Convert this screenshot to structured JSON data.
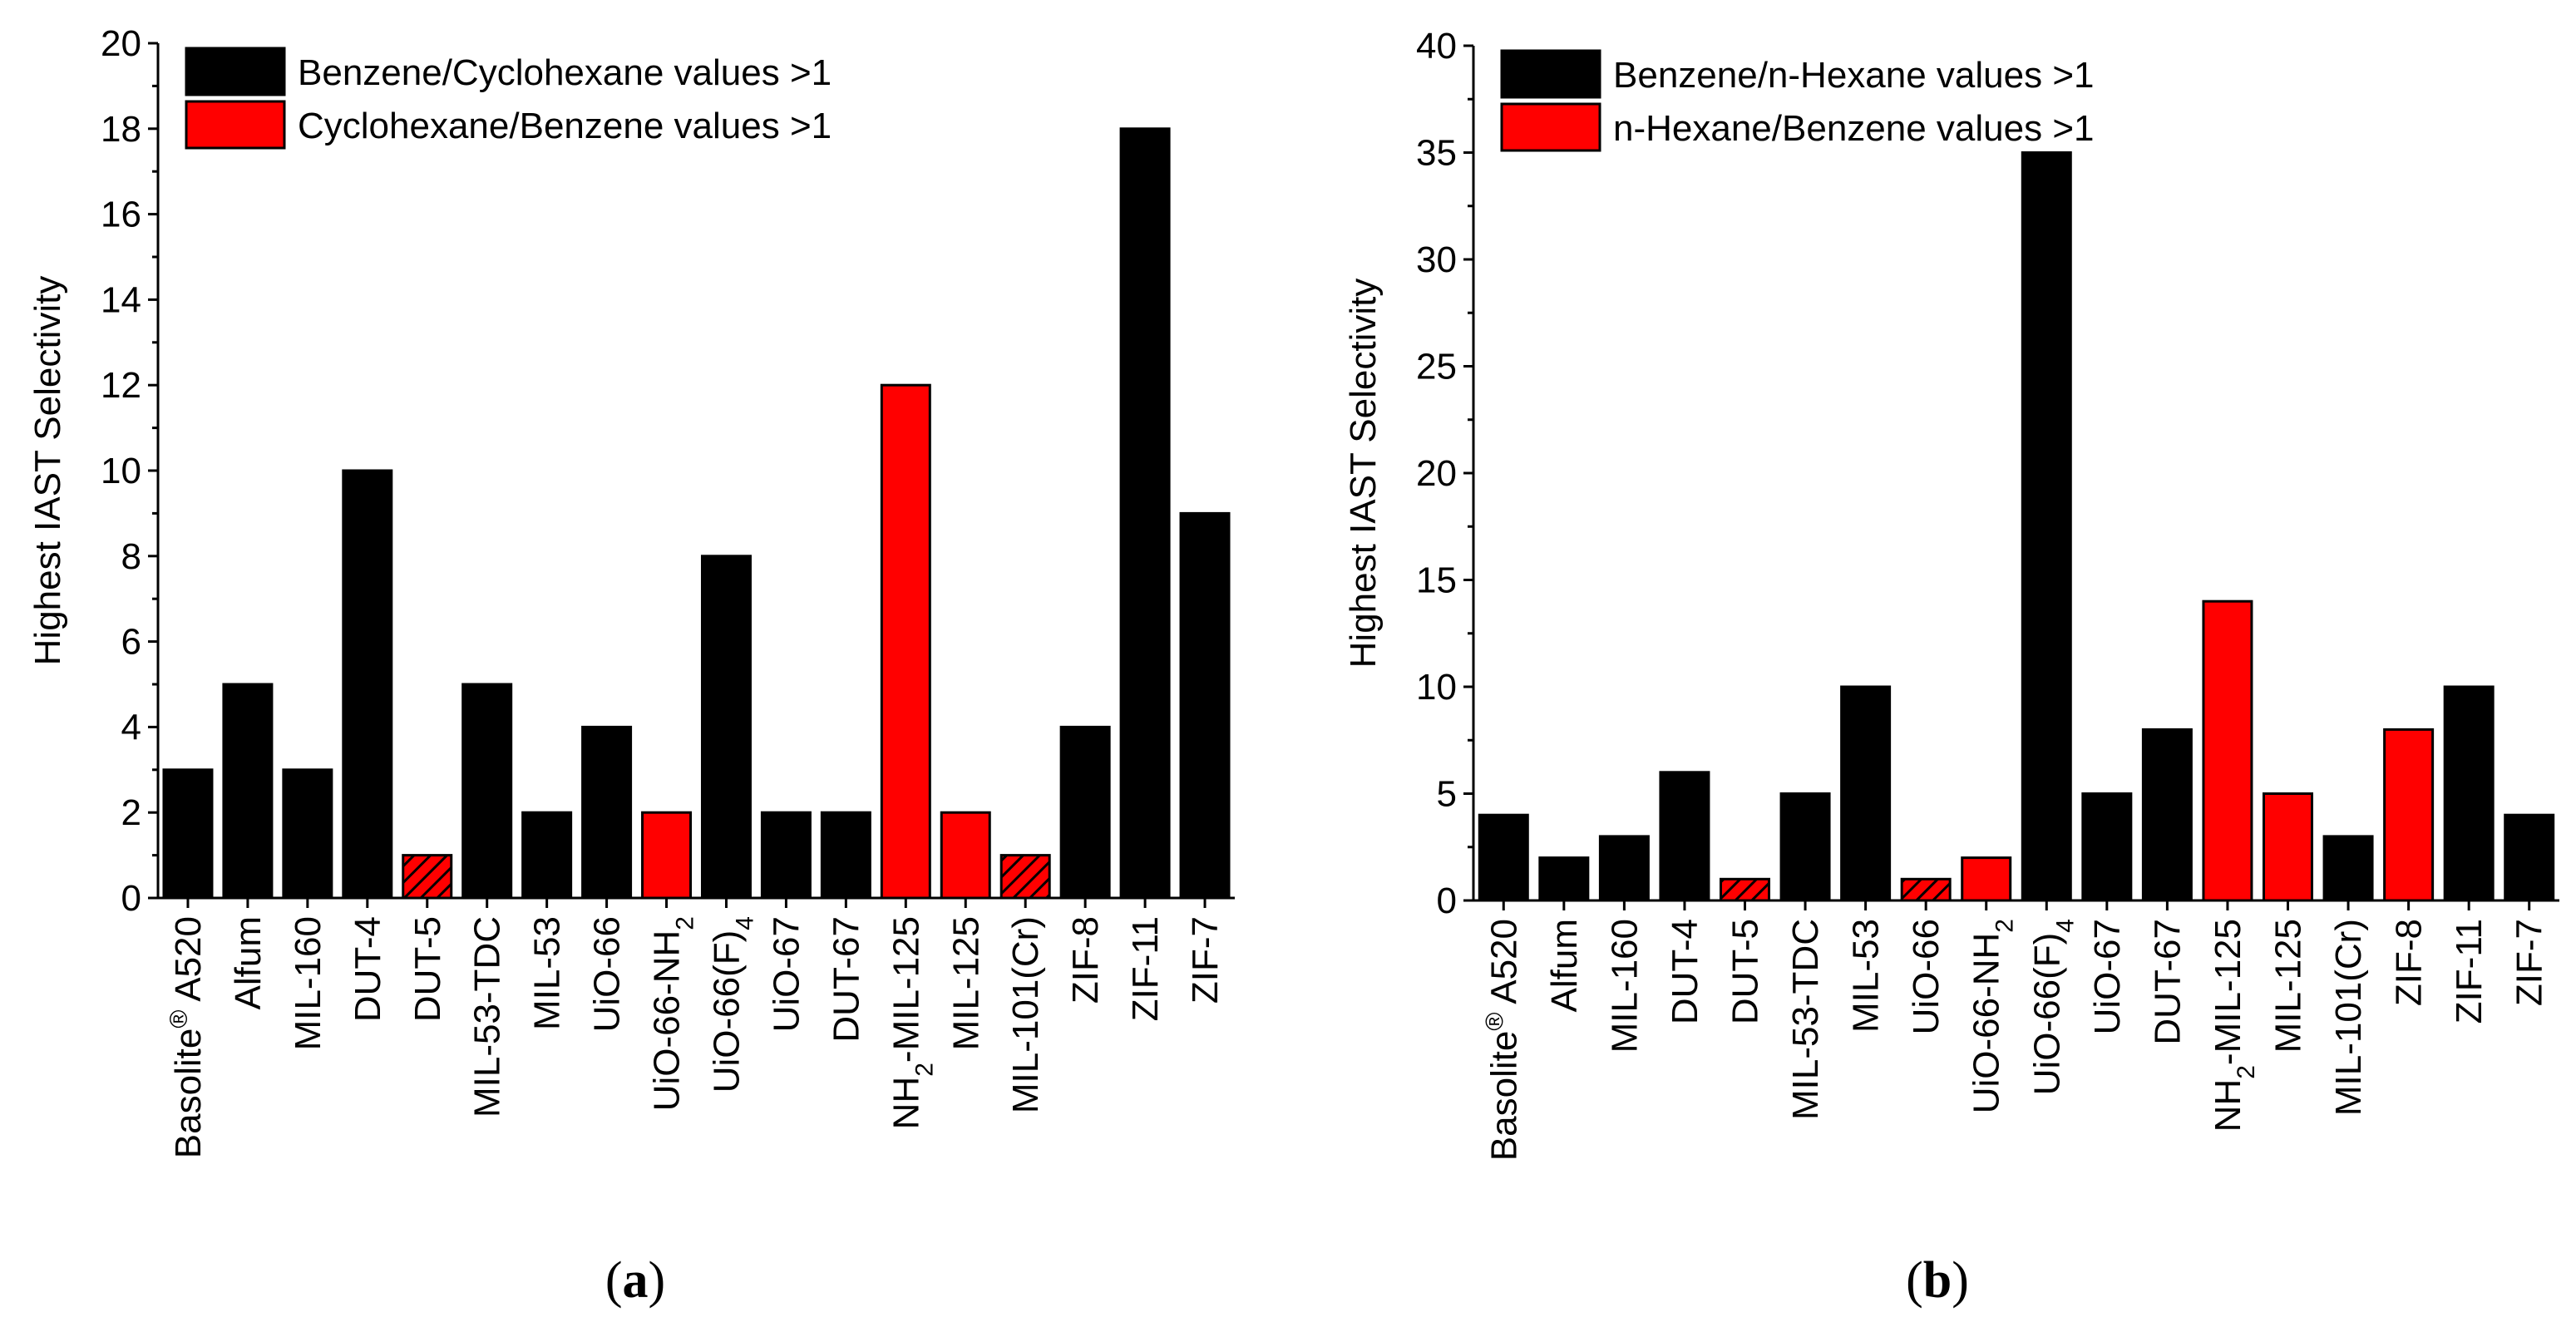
{
  "colors": {
    "black_series": "#000000",
    "red_series": "#ff0000",
    "hatched_fill": "#ff0000"
  },
  "chart_data": [
    {
      "type": "bar",
      "panel_label": "(a)",
      "ylabel": "Highest IAST Selectivity",
      "xlabel": "",
      "ylim": [
        0,
        20
      ],
      "yticks": [
        0,
        2,
        4,
        6,
        8,
        10,
        12,
        14,
        16,
        18,
        20
      ],
      "legend_position": "top-left",
      "legend": [
        {
          "label": "Benzene/Cyclohexane values >1",
          "style": "black"
        },
        {
          "label": "Cyclohexane/Benzene values >1",
          "style": "red"
        }
      ],
      "categories": [
        {
          "parts": [
            [
              "Basolite",
              "n"
            ],
            [
              "®",
              "sup"
            ],
            [
              " A520",
              "n"
            ]
          ]
        },
        {
          "parts": [
            [
              "Alfum",
              "n"
            ]
          ]
        },
        {
          "parts": [
            [
              "MIL-160",
              "n"
            ]
          ]
        },
        {
          "parts": [
            [
              "DUT-4",
              "n"
            ]
          ]
        },
        {
          "parts": [
            [
              "DUT-5",
              "n"
            ]
          ]
        },
        {
          "parts": [
            [
              "MIL-53-TDC",
              "n"
            ]
          ]
        },
        {
          "parts": [
            [
              "MIL-53",
              "n"
            ]
          ]
        },
        {
          "parts": [
            [
              "UiO-66",
              "n"
            ]
          ]
        },
        {
          "parts": [
            [
              "UiO-66-NH",
              "n"
            ],
            [
              "2",
              "sub"
            ]
          ]
        },
        {
          "parts": [
            [
              "UiO-66(F)",
              "n"
            ],
            [
              "4",
              "sub"
            ]
          ]
        },
        {
          "parts": [
            [
              "UiO-67",
              "n"
            ]
          ]
        },
        {
          "parts": [
            [
              "DUT-67",
              "n"
            ]
          ]
        },
        {
          "parts": [
            [
              "NH",
              "n"
            ],
            [
              "2",
              "sub"
            ],
            [
              "-MIL-125",
              "n"
            ]
          ]
        },
        {
          "parts": [
            [
              "MIL-125",
              "n"
            ]
          ]
        },
        {
          "parts": [
            [
              "MIL-101(Cr)",
              "n"
            ]
          ]
        },
        {
          "parts": [
            [
              "ZIF-8",
              "n"
            ]
          ]
        },
        {
          "parts": [
            [
              "ZIF-11",
              "n"
            ]
          ]
        },
        {
          "parts": [
            [
              "ZIF-7",
              "n"
            ]
          ]
        }
      ],
      "values": [
        3,
        5,
        3,
        10,
        1,
        5,
        2,
        4,
        2,
        8,
        2,
        2,
        12,
        2,
        1,
        4,
        18,
        9
      ],
      "styles": [
        "black",
        "black",
        "black",
        "black",
        "hatched",
        "black",
        "black",
        "black",
        "red",
        "black",
        "black",
        "black",
        "red",
        "red",
        "hatched",
        "black",
        "black",
        "black"
      ]
    },
    {
      "type": "bar",
      "panel_label": "(b)",
      "ylabel": "Highest IAST Selectivity",
      "xlabel": "",
      "ylim": [
        0,
        40
      ],
      "yticks": [
        0,
        5,
        10,
        15,
        20,
        25,
        30,
        35,
        40
      ],
      "legend_position": "top-left",
      "legend": [
        {
          "label": "Benzene/n-Hexane values >1",
          "style": "black"
        },
        {
          "label": "n-Hexane/Benzene values >1",
          "style": "red"
        }
      ],
      "categories": [
        {
          "parts": [
            [
              "Basolite",
              "n"
            ],
            [
              "®",
              "sup"
            ],
            [
              " A520",
              "n"
            ]
          ]
        },
        {
          "parts": [
            [
              "Alfum",
              "n"
            ]
          ]
        },
        {
          "parts": [
            [
              "MIL-160",
              "n"
            ]
          ]
        },
        {
          "parts": [
            [
              "DUT-4",
              "n"
            ]
          ]
        },
        {
          "parts": [
            [
              "DUT-5",
              "n"
            ]
          ]
        },
        {
          "parts": [
            [
              "MIL-53-TDC",
              "n"
            ]
          ]
        },
        {
          "parts": [
            [
              "MIL-53",
              "n"
            ]
          ]
        },
        {
          "parts": [
            [
              "UiO-66",
              "n"
            ]
          ]
        },
        {
          "parts": [
            [
              "UiO-66-NH",
              "n"
            ],
            [
              "2",
              "sub"
            ]
          ]
        },
        {
          "parts": [
            [
              "UiO-66(F)",
              "n"
            ],
            [
              "4",
              "sub"
            ]
          ]
        },
        {
          "parts": [
            [
              "UiO-67",
              "n"
            ]
          ]
        },
        {
          "parts": [
            [
              "DUT-67",
              "n"
            ]
          ]
        },
        {
          "parts": [
            [
              "NH",
              "n"
            ],
            [
              "2",
              "sub"
            ],
            [
              "-MIL-125",
              "n"
            ]
          ]
        },
        {
          "parts": [
            [
              "MIL-125",
              "n"
            ]
          ]
        },
        {
          "parts": [
            [
              "MIL-101(Cr)",
              "n"
            ]
          ]
        },
        {
          "parts": [
            [
              "ZIF-8",
              "n"
            ]
          ]
        },
        {
          "parts": [
            [
              "ZIF-11",
              "n"
            ]
          ]
        },
        {
          "parts": [
            [
              "ZIF-7",
              "n"
            ]
          ]
        }
      ],
      "values": [
        4,
        2,
        3,
        6,
        1,
        5,
        10,
        1,
        2,
        35,
        5,
        8,
        14,
        5,
        3,
        8,
        10,
        4
      ],
      "styles": [
        "black",
        "black",
        "black",
        "black",
        "hatched",
        "black",
        "black",
        "hatched",
        "red",
        "black",
        "black",
        "black",
        "red",
        "red",
        "black",
        "red",
        "black",
        "black"
      ]
    }
  ]
}
